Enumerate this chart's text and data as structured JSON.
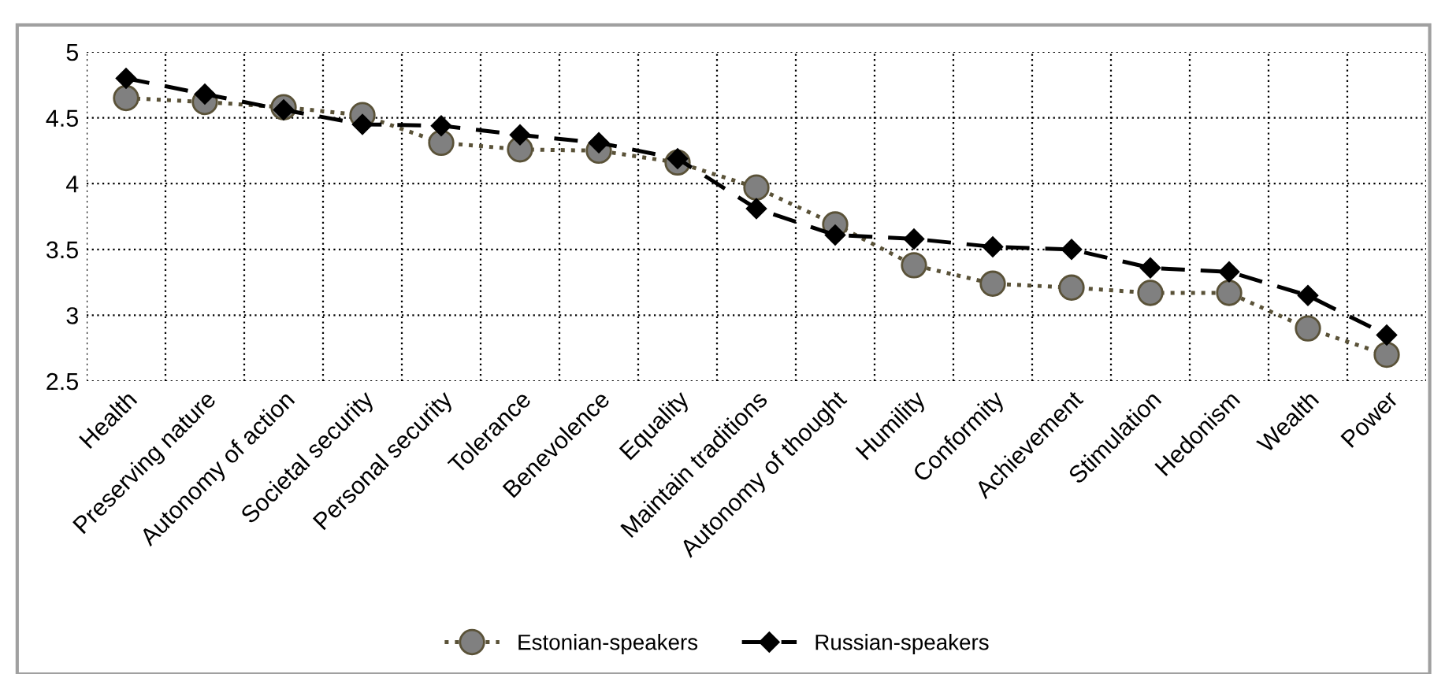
{
  "chart_data": {
    "type": "line",
    "categories": [
      "Health",
      "Preserving nature",
      "Autonomy of action",
      "Societal security",
      "Personal security",
      "Tolerance",
      "Benevolence",
      "Equality",
      "Maintain traditions",
      "Autonomy of thought",
      "Humility",
      "Conformity",
      "Achievement",
      "Stimulation",
      "Hedonism",
      "Wealth",
      "Power"
    ],
    "series": [
      {
        "name": "Estonian-speakers",
        "color": "#5a5238",
        "marker": "circle",
        "line_style": "dotted",
        "values": [
          4.65,
          4.62,
          4.58,
          4.52,
          4.31,
          4.26,
          4.25,
          4.16,
          3.97,
          3.69,
          3.38,
          3.24,
          3.21,
          3.17,
          3.17,
          2.9,
          2.7
        ]
      },
      {
        "name": "Russian-speakers",
        "color": "#000000",
        "marker": "diamond",
        "line_style": "dashed",
        "values": [
          4.8,
          4.68,
          4.56,
          4.45,
          4.44,
          4.37,
          4.31,
          4.19,
          3.81,
          3.61,
          3.58,
          3.52,
          3.5,
          3.36,
          3.33,
          3.15,
          2.85
        ]
      }
    ],
    "ylim": [
      2.5,
      5
    ],
    "yticks": [
      2.5,
      3,
      3.5,
      4,
      4.5,
      5
    ],
    "grid": true,
    "legend": "bottom"
  }
}
